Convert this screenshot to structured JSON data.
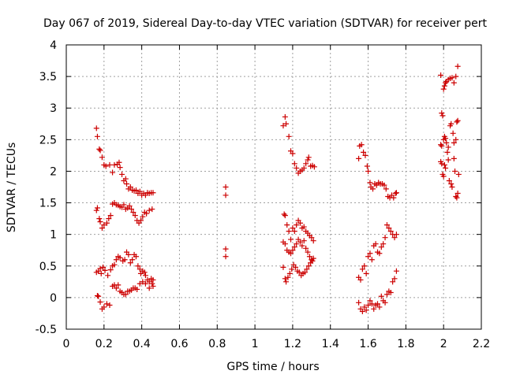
{
  "chart_data": {
    "type": "scatter",
    "title": "Day 067 of 2019, Sidereal Day-to-day VTEC variation (SDTVAR) for receiver pert",
    "xlabel": "GPS time / hours",
    "ylabel": "SDTVAR / TECUs",
    "xlim": [
      0,
      2.2
    ],
    "ylim": [
      -0.5,
      4
    ],
    "x_ticks": [
      0,
      0.2,
      0.4,
      0.6,
      0.8,
      1,
      1.2,
      1.4,
      1.6,
      1.8,
      2,
      2.2
    ],
    "x_tick_labels": [
      "0",
      "0.2",
      "0.4",
      "0.6",
      "0.8",
      "1",
      "1.2",
      "1.4",
      "1.6",
      "1.8",
      "2",
      "2.2"
    ],
    "y_ticks": [
      -0.5,
      0,
      0.5,
      1,
      1.5,
      2,
      2.5,
      3,
      3.5,
      4
    ],
    "y_tick_labels": [
      "-0.5",
      "0",
      "0.5",
      "1",
      "1.5",
      "2",
      "2.5",
      "3",
      "3.5",
      "4"
    ],
    "grid": true,
    "marker": "+",
    "color": "#cc0000",
    "series": [
      {
        "name": "SDTVAR",
        "points": [
          [
            0.16,
            2.68
          ],
          [
            0.165,
            2.55
          ],
          [
            0.175,
            2.35
          ],
          [
            0.18,
            2.33
          ],
          [
            0.19,
            2.22
          ],
          [
            0.2,
            2.1
          ],
          [
            0.21,
            2.08
          ],
          [
            0.23,
            2.1
          ],
          [
            0.245,
            1.98
          ],
          [
            0.255,
            2.1
          ],
          [
            0.27,
            2.11
          ],
          [
            0.28,
            2.14
          ],
          [
            0.285,
            2.06
          ],
          [
            0.295,
            1.95
          ],
          [
            0.305,
            1.85
          ],
          [
            0.315,
            1.88
          ],
          [
            0.32,
            1.8
          ],
          [
            0.33,
            1.72
          ],
          [
            0.34,
            1.75
          ],
          [
            0.35,
            1.7
          ],
          [
            0.36,
            1.69
          ],
          [
            0.37,
            1.7
          ],
          [
            0.38,
            1.65
          ],
          [
            0.39,
            1.68
          ],
          [
            0.4,
            1.62
          ],
          [
            0.41,
            1.65
          ],
          [
            0.42,
            1.62
          ],
          [
            0.43,
            1.66
          ],
          [
            0.44,
            1.65
          ],
          [
            0.45,
            1.66
          ],
          [
            0.46,
            1.66
          ],
          [
            0.16,
            1.38
          ],
          [
            0.165,
            1.42
          ],
          [
            0.175,
            1.25
          ],
          [
            0.18,
            1.2
          ],
          [
            0.19,
            1.1
          ],
          [
            0.2,
            1.15
          ],
          [
            0.215,
            1.18
          ],
          [
            0.225,
            1.25
          ],
          [
            0.235,
            1.3
          ],
          [
            0.245,
            1.48
          ],
          [
            0.255,
            1.5
          ],
          [
            0.265,
            1.47
          ],
          [
            0.275,
            1.46
          ],
          [
            0.285,
            1.44
          ],
          [
            0.295,
            1.43
          ],
          [
            0.305,
            1.47
          ],
          [
            0.315,
            1.4
          ],
          [
            0.325,
            1.42
          ],
          [
            0.335,
            1.45
          ],
          [
            0.345,
            1.4
          ],
          [
            0.355,
            1.35
          ],
          [
            0.365,
            1.3
          ],
          [
            0.375,
            1.22
          ],
          [
            0.385,
            1.18
          ],
          [
            0.395,
            1.22
          ],
          [
            0.405,
            1.28
          ],
          [
            0.415,
            1.35
          ],
          [
            0.425,
            1.33
          ],
          [
            0.44,
            1.38
          ],
          [
            0.455,
            1.4
          ],
          [
            0.16,
            0.4
          ],
          [
            0.17,
            0.42
          ],
          [
            0.18,
            0.46
          ],
          [
            0.185,
            0.38
          ],
          [
            0.195,
            0.48
          ],
          [
            0.205,
            0.43
          ],
          [
            0.22,
            0.35
          ],
          [
            0.235,
            0.44
          ],
          [
            0.245,
            0.5
          ],
          [
            0.255,
            0.52
          ],
          [
            0.265,
            0.6
          ],
          [
            0.275,
            0.65
          ],
          [
            0.285,
            0.63
          ],
          [
            0.3,
            0.58
          ],
          [
            0.31,
            0.6
          ],
          [
            0.32,
            0.72
          ],
          [
            0.33,
            0.68
          ],
          [
            0.34,
            0.55
          ],
          [
            0.35,
            0.6
          ],
          [
            0.36,
            0.68
          ],
          [
            0.37,
            0.65
          ],
          [
            0.38,
            0.5
          ],
          [
            0.39,
            0.45
          ],
          [
            0.395,
            0.38
          ],
          [
            0.405,
            0.42
          ],
          [
            0.415,
            0.4
          ],
          [
            0.42,
            0.35
          ],
          [
            0.43,
            0.28
          ],
          [
            0.44,
            0.25
          ],
          [
            0.45,
            0.3
          ],
          [
            0.46,
            0.28
          ],
          [
            0.165,
            0.03
          ],
          [
            0.17,
            0.02
          ],
          [
            0.18,
            -0.07
          ],
          [
            0.19,
            -0.18
          ],
          [
            0.2,
            -0.15
          ],
          [
            0.215,
            -0.1
          ],
          [
            0.23,
            -0.12
          ],
          [
            0.245,
            0.18
          ],
          [
            0.255,
            0.2
          ],
          [
            0.265,
            0.15
          ],
          [
            0.275,
            0.2
          ],
          [
            0.285,
            0.1
          ],
          [
            0.295,
            0.08
          ],
          [
            0.305,
            0.05
          ],
          [
            0.315,
            0.05
          ],
          [
            0.325,
            0.1
          ],
          [
            0.335,
            0.1
          ],
          [
            0.345,
            0.12
          ],
          [
            0.355,
            0.15
          ],
          [
            0.365,
            0.15
          ],
          [
            0.375,
            0.13
          ],
          [
            0.39,
            0.22
          ],
          [
            0.405,
            0.25
          ],
          [
            0.42,
            0.22
          ],
          [
            0.44,
            0.15
          ],
          [
            0.455,
            0.22
          ],
          [
            0.46,
            0.18
          ],
          [
            0.845,
            1.75
          ],
          [
            0.845,
            1.62
          ],
          [
            0.845,
            0.77
          ],
          [
            0.845,
            0.65
          ],
          [
            1.15,
            2.72
          ],
          [
            1.16,
            2.86
          ],
          [
            1.165,
            2.75
          ],
          [
            1.18,
            2.55
          ],
          [
            1.19,
            2.32
          ],
          [
            1.2,
            2.28
          ],
          [
            1.21,
            2.12
          ],
          [
            1.22,
            2.05
          ],
          [
            1.23,
            1.97
          ],
          [
            1.24,
            2.0
          ],
          [
            1.25,
            2.02
          ],
          [
            1.26,
            2.05
          ],
          [
            1.27,
            2.12
          ],
          [
            1.28,
            2.18
          ],
          [
            1.285,
            2.22
          ],
          [
            1.295,
            2.08
          ],
          [
            1.305,
            2.09
          ],
          [
            1.315,
            2.07
          ],
          [
            1.155,
            1.32
          ],
          [
            1.16,
            1.3
          ],
          [
            1.17,
            1.15
          ],
          [
            1.18,
            1.05
          ],
          [
            1.19,
            0.92
          ],
          [
            1.2,
            1.1
          ],
          [
            1.21,
            1.05
          ],
          [
            1.22,
            1.15
          ],
          [
            1.23,
            1.22
          ],
          [
            1.24,
            1.18
          ],
          [
            1.25,
            1.1
          ],
          [
            1.26,
            1.12
          ],
          [
            1.27,
            1.05
          ],
          [
            1.28,
            1.02
          ],
          [
            1.29,
            0.98
          ],
          [
            1.3,
            0.95
          ],
          [
            1.31,
            0.9
          ],
          [
            1.15,
            0.88
          ],
          [
            1.16,
            0.85
          ],
          [
            1.17,
            0.75
          ],
          [
            1.18,
            0.72
          ],
          [
            1.19,
            0.7
          ],
          [
            1.2,
            0.75
          ],
          [
            1.21,
            0.8
          ],
          [
            1.22,
            0.85
          ],
          [
            1.23,
            0.92
          ],
          [
            1.24,
            0.88
          ],
          [
            1.25,
            0.82
          ],
          [
            1.26,
            0.9
          ],
          [
            1.27,
            0.78
          ],
          [
            1.28,
            0.72
          ],
          [
            1.29,
            0.65
          ],
          [
            1.3,
            0.6
          ],
          [
            1.31,
            0.62
          ],
          [
            1.15,
            0.48
          ],
          [
            1.16,
            0.3
          ],
          [
            1.165,
            0.25
          ],
          [
            1.175,
            0.32
          ],
          [
            1.185,
            0.38
          ],
          [
            1.195,
            0.45
          ],
          [
            1.205,
            0.52
          ],
          [
            1.215,
            0.48
          ],
          [
            1.225,
            0.42
          ],
          [
            1.235,
            0.4
          ],
          [
            1.245,
            0.35
          ],
          [
            1.255,
            0.38
          ],
          [
            1.265,
            0.4
          ],
          [
            1.275,
            0.45
          ],
          [
            1.285,
            0.5
          ],
          [
            1.295,
            0.55
          ],
          [
            1.305,
            0.58
          ],
          [
            1.55,
            2.2
          ],
          [
            1.555,
            2.4
          ],
          [
            1.565,
            2.42
          ],
          [
            1.575,
            2.3
          ],
          [
            1.585,
            2.25
          ],
          [
            1.595,
            2.08
          ],
          [
            1.6,
            2.0
          ],
          [
            1.61,
            1.82
          ],
          [
            1.615,
            1.75
          ],
          [
            1.625,
            1.72
          ],
          [
            1.635,
            1.8
          ],
          [
            1.645,
            1.78
          ],
          [
            1.655,
            1.82
          ],
          [
            1.665,
            1.8
          ],
          [
            1.675,
            1.8
          ],
          [
            1.685,
            1.78
          ],
          [
            1.695,
            1.72
          ],
          [
            1.705,
            1.6
          ],
          [
            1.715,
            1.58
          ],
          [
            1.725,
            1.62
          ],
          [
            1.735,
            1.58
          ],
          [
            1.745,
            1.65
          ],
          [
            1.75,
            1.66
          ],
          [
            1.55,
            0.32
          ],
          [
            1.56,
            0.28
          ],
          [
            1.57,
            0.45
          ],
          [
            1.58,
            0.5
          ],
          [
            1.59,
            0.38
          ],
          [
            1.6,
            0.65
          ],
          [
            1.61,
            0.7
          ],
          [
            1.62,
            0.6
          ],
          [
            1.63,
            0.82
          ],
          [
            1.64,
            0.85
          ],
          [
            1.65,
            0.72
          ],
          [
            1.66,
            0.7
          ],
          [
            1.67,
            0.8
          ],
          [
            1.68,
            0.85
          ],
          [
            1.69,
            0.95
          ],
          [
            1.7,
            1.15
          ],
          [
            1.71,
            1.1
          ],
          [
            1.72,
            1.05
          ],
          [
            1.73,
            1.0
          ],
          [
            1.74,
            0.95
          ],
          [
            1.75,
            1.0
          ],
          [
            1.55,
            -0.08
          ],
          [
            1.56,
            -0.18
          ],
          [
            1.57,
            -0.22
          ],
          [
            1.58,
            -0.15
          ],
          [
            1.59,
            -0.2
          ],
          [
            1.6,
            -0.12
          ],
          [
            1.61,
            -0.05
          ],
          [
            1.62,
            -0.1
          ],
          [
            1.63,
            -0.18
          ],
          [
            1.64,
            -0.12
          ],
          [
            1.65,
            -0.1
          ],
          [
            1.66,
            -0.15
          ],
          [
            1.67,
            0.02
          ],
          [
            1.68,
            -0.05
          ],
          [
            1.69,
            -0.08
          ],
          [
            1.7,
            0.05
          ],
          [
            1.71,
            0.1
          ],
          [
            1.72,
            0.08
          ],
          [
            1.73,
            0.25
          ],
          [
            1.74,
            0.3
          ],
          [
            1.75,
            0.42
          ],
          [
            1.985,
            3.52
          ],
          [
            1.99,
            2.92
          ],
          [
            1.995,
            2.88
          ],
          [
            2.0,
            3.3
          ],
          [
            2.005,
            3.35
          ],
          [
            2.01,
            3.4
          ],
          [
            2.015,
            3.42
          ],
          [
            2.025,
            3.45
          ],
          [
            2.035,
            3.47
          ],
          [
            2.045,
            3.48
          ],
          [
            2.055,
            3.4
          ],
          [
            2.065,
            3.5
          ],
          [
            2.075,
            3.66
          ],
          [
            1.985,
            2.42
          ],
          [
            1.99,
            2.4
          ],
          [
            2.0,
            2.5
          ],
          [
            2.005,
            2.55
          ],
          [
            2.01,
            2.52
          ],
          [
            2.015,
            2.45
          ],
          [
            2.025,
            2.38
          ],
          [
            2.035,
            2.72
          ],
          [
            2.04,
            2.75
          ],
          [
            2.05,
            2.6
          ],
          [
            2.055,
            2.45
          ],
          [
            2.065,
            2.5
          ],
          [
            2.07,
            2.78
          ],
          [
            2.075,
            2.8
          ],
          [
            1.985,
            2.15
          ],
          [
            1.99,
            2.12
          ],
          [
            1.995,
            1.95
          ],
          [
            2.0,
            1.92
          ],
          [
            2.005,
            2.1
          ],
          [
            2.01,
            2.05
          ],
          [
            2.02,
            2.3
          ],
          [
            2.025,
            2.18
          ],
          [
            2.03,
            1.85
          ],
          [
            2.04,
            1.8
          ],
          [
            2.045,
            1.75
          ],
          [
            2.055,
            2.2
          ],
          [
            2.06,
            2.0
          ],
          [
            2.065,
            1.6
          ],
          [
            2.07,
            1.58
          ],
          [
            2.075,
            1.65
          ],
          [
            2.08,
            1.95
          ]
        ]
      }
    ]
  }
}
